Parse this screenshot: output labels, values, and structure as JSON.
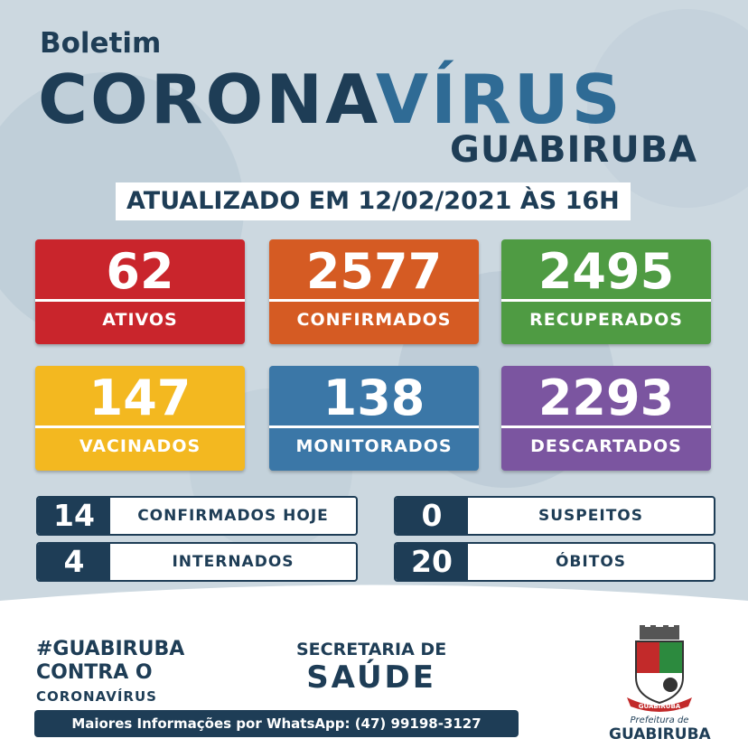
{
  "header": {
    "kicker": "Boletim",
    "title_part1": "CORONA",
    "title_part2": "VÍRUS",
    "city": "GUABIRUBA",
    "updated": "ATUALIZADO EM 12/02/2021 ÀS 16H"
  },
  "cards": [
    {
      "value": "62",
      "label": "ATIVOS",
      "color": "#c9252c"
    },
    {
      "value": "2577",
      "label": "CONFIRMADOS",
      "color": "#d55b23"
    },
    {
      "value": "2495",
      "label": "RECUPERADOS",
      "color": "#4f9b43"
    },
    {
      "value": "147",
      "label": "VACINADOS",
      "color": "#f3b820"
    },
    {
      "value": "138",
      "label": "MONITORADOS",
      "color": "#3b77a7"
    },
    {
      "value": "2293",
      "label": "DESCARTADOS",
      "color": "#7b55a0"
    }
  ],
  "stats": [
    {
      "value": "14",
      "label": "CONFIRMADOS HOJE"
    },
    {
      "value": "0",
      "label": "SUSPEITOS"
    },
    {
      "value": "4",
      "label": "INTERNADOS"
    },
    {
      "value": "20",
      "label": "ÓBITOS"
    }
  ],
  "footer": {
    "hashtag": "#GUABIRUBA",
    "campaign_line2": "CONTRA O",
    "campaign_line3": "CORONAVÍRUS",
    "dept_line1": "SECRETARIA DE",
    "dept_line2": "SAÚDE",
    "whatsapp": "Maiores Informações por WhatsApp: (47) 99198-3127",
    "logo_sub": "Prefeitura de",
    "logo_main": "GUABIRUBA",
    "logo_banner": "GUABIRUBA"
  },
  "colors": {
    "navy": "#1e3d56",
    "blue": "#2f6b95",
    "background": "#c9d6df"
  }
}
